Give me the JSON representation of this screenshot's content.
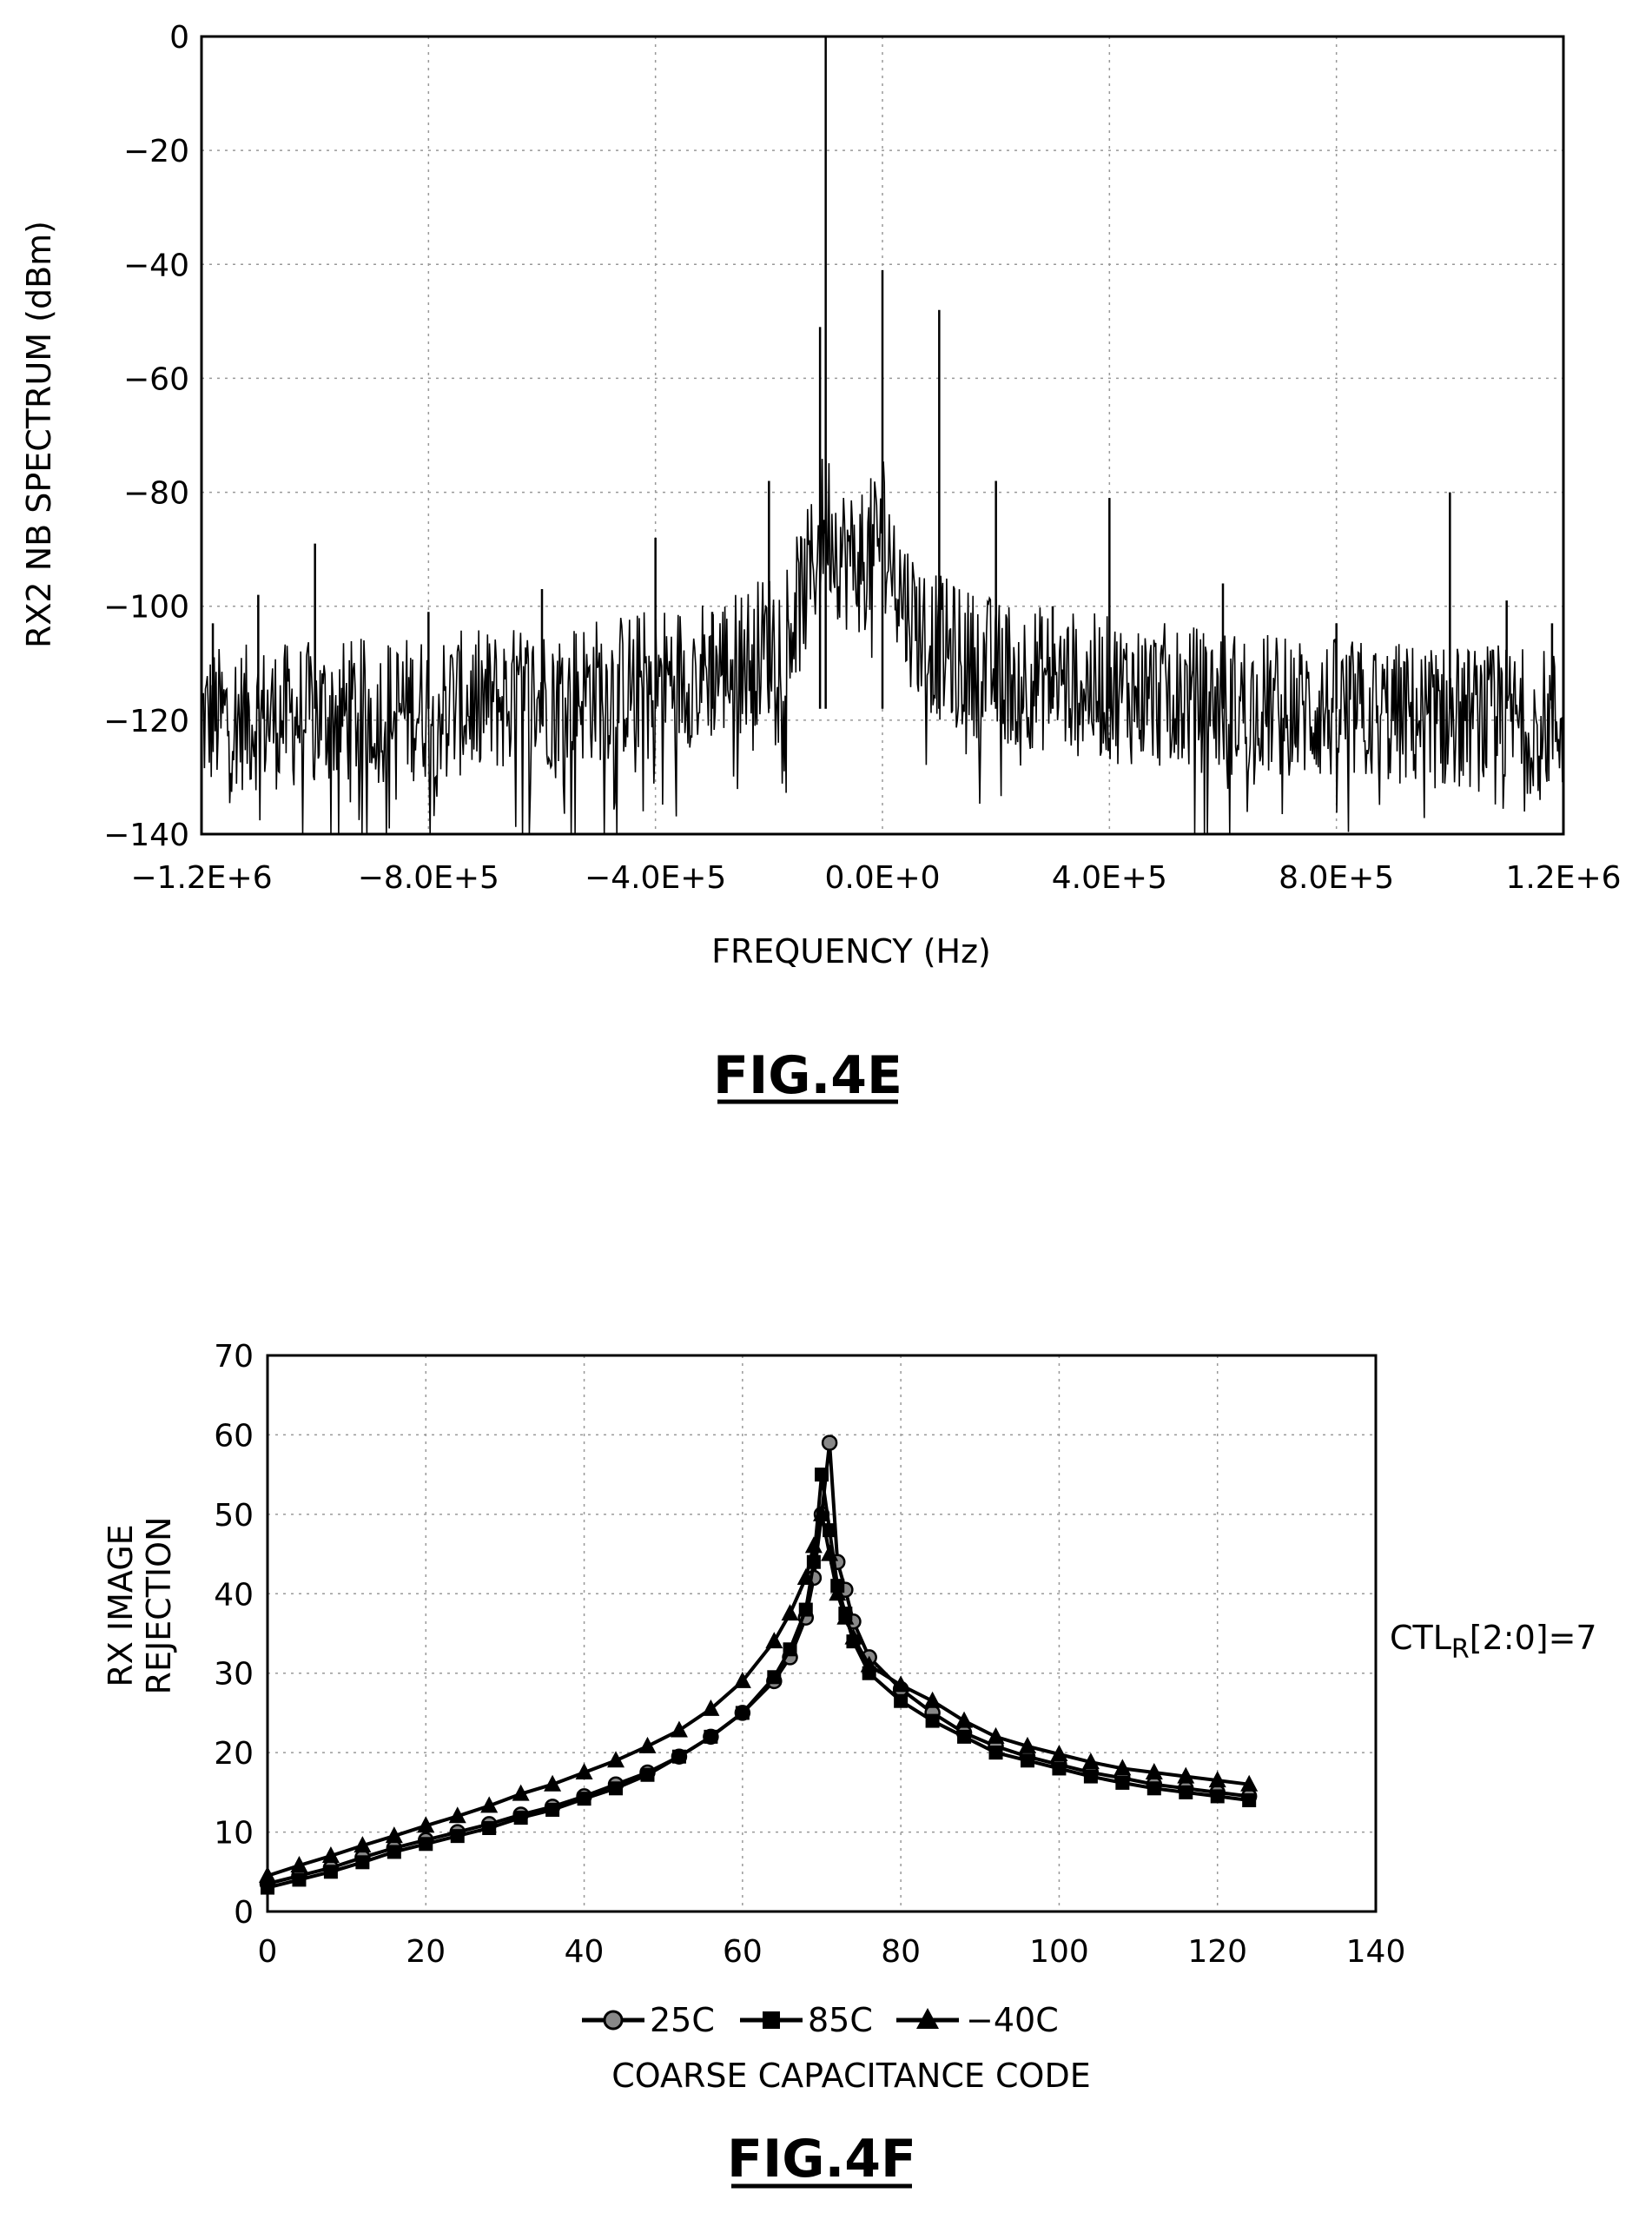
{
  "chart_data": [
    {
      "type": "line",
      "figure_label": "FIG.4E",
      "title": "",
      "xlabel": "FREQUENCY (Hz)",
      "ylabel": "RX2 NB SPECTRUM (dBm)",
      "xlim": [
        -1200000,
        1200000
      ],
      "ylim": [
        -140,
        0
      ],
      "x_ticks": [
        -1200000,
        -800000,
        -400000,
        0,
        400000,
        800000,
        1200000
      ],
      "x_tick_labels": [
        "−1.2E+6",
        "−8.0E+5",
        "−4.0E+5",
        "0.0E+0",
        "4.0E+5",
        "8.0E+5",
        "1.2E+6"
      ],
      "y_ticks": [
        0,
        -20,
        -40,
        -60,
        -80,
        -100,
        -120,
        -140
      ],
      "y_tick_labels": [
        "0",
        "−20",
        "−40",
        "−60",
        "−80",
        "−100",
        "−120",
        "−140"
      ],
      "grid": true,
      "noise_floor": {
        "edge_dbm": -122,
        "center_dbm": -105
      },
      "peaks": [
        {
          "x": -100000,
          "y": 0
        },
        {
          "x": -110000,
          "y": -51
        },
        {
          "x": 0,
          "y": -41
        },
        {
          "x": 100000,
          "y": -48
        },
        {
          "x": -200000,
          "y": -78
        },
        {
          "x": 200000,
          "y": -78
        },
        {
          "x": -400000,
          "y": -88
        },
        {
          "x": 400000,
          "y": -81
        },
        {
          "x": -1000000,
          "y": -89
        },
        {
          "x": 1000000,
          "y": -80
        },
        {
          "x": -1100000,
          "y": -98
        },
        {
          "x": 1100000,
          "y": -99
        },
        {
          "x": -600000,
          "y": -97
        },
        {
          "x": 600000,
          "y": -96
        },
        {
          "x": -300000,
          "y": -101
        },
        {
          "x": 300000,
          "y": -100
        },
        {
          "x": -800000,
          "y": -101
        },
        {
          "x": 800000,
          "y": -103
        },
        {
          "x": -1180000,
          "y": -103
        },
        {
          "x": 1180000,
          "y": -103
        }
      ]
    },
    {
      "type": "line",
      "figure_label": "FIG.4F",
      "title": "",
      "xlabel": "COARSE CAPACITANCE CODE",
      "ylabel": "RX IMAGE\nREJECTION",
      "ylabel_lines": [
        "RX IMAGE",
        "REJECTION"
      ],
      "xlim": [
        0,
        140
      ],
      "ylim": [
        0,
        70
      ],
      "x_ticks": [
        0,
        20,
        40,
        60,
        80,
        100,
        120,
        140
      ],
      "y_ticks": [
        0,
        10,
        20,
        30,
        40,
        50,
        60,
        70
      ],
      "grid": true,
      "legend_position": "bottom",
      "annotation": {
        "main": "CTL",
        "sub": "R",
        "rest": "[2:0]=7"
      },
      "series": [
        {
          "name": "25C",
          "marker": "circle",
          "x": [
            0,
            4,
            8,
            12,
            16,
            20,
            24,
            28,
            32,
            36,
            40,
            44,
            48,
            52,
            56,
            60,
            64,
            66,
            68,
            69,
            70,
            71,
            72,
            73,
            74,
            76,
            80,
            84,
            88,
            92,
            96,
            100,
            104,
            108,
            112,
            116,
            120,
            124
          ],
          "y": [
            3.5,
            4.5,
            5.5,
            6.8,
            8.0,
            9.0,
            10.0,
            11.0,
            12.2,
            13.2,
            14.5,
            16.0,
            17.5,
            19.5,
            22.0,
            25.0,
            29.0,
            32.0,
            37.0,
            42.0,
            50.0,
            59.0,
            44.0,
            40.5,
            36.5,
            32.0,
            28.0,
            25.0,
            22.5,
            20.8,
            19.5,
            18.5,
            17.5,
            16.8,
            16.0,
            15.5,
            15.0,
            14.5
          ]
        },
        {
          "name": "85C",
          "marker": "square",
          "x": [
            0,
            4,
            8,
            12,
            16,
            20,
            24,
            28,
            32,
            36,
            40,
            44,
            48,
            52,
            56,
            60,
            64,
            66,
            68,
            69,
            70,
            71,
            72,
            73,
            74,
            76,
            80,
            84,
            88,
            92,
            96,
            100,
            104,
            108,
            112,
            116,
            120,
            124
          ],
          "y": [
            3.0,
            4.0,
            5.0,
            6.2,
            7.5,
            8.5,
            9.5,
            10.5,
            11.8,
            12.8,
            14.2,
            15.5,
            17.2,
            19.5,
            22.0,
            25.0,
            29.5,
            33.0,
            38.0,
            44.0,
            55.0,
            48.0,
            41.0,
            37.5,
            34.0,
            30.0,
            26.5,
            24.0,
            22.0,
            20.0,
            19.0,
            18.0,
            17.0,
            16.2,
            15.5,
            15.0,
            14.5,
            14.0
          ]
        },
        {
          "name": "−40C",
          "marker": "triangle",
          "x": [
            0,
            4,
            8,
            12,
            16,
            20,
            24,
            28,
            32,
            36,
            40,
            44,
            48,
            52,
            56,
            60,
            64,
            66,
            68,
            69,
            70,
            71,
            72,
            73,
            74,
            76,
            80,
            84,
            88,
            92,
            96,
            100,
            104,
            108,
            112,
            116,
            120,
            124
          ],
          "y": [
            4.5,
            5.8,
            7.0,
            8.3,
            9.5,
            10.8,
            12.0,
            13.3,
            14.8,
            16.0,
            17.5,
            19.0,
            20.8,
            22.8,
            25.5,
            29.0,
            34.0,
            37.5,
            42.0,
            46.0,
            50.0,
            45.0,
            40.0,
            37.0,
            34.5,
            31.0,
            28.5,
            26.5,
            24.0,
            22.0,
            20.8,
            19.8,
            18.8,
            18.0,
            17.5,
            17.0,
            16.5,
            16.0
          ]
        }
      ]
    }
  ]
}
